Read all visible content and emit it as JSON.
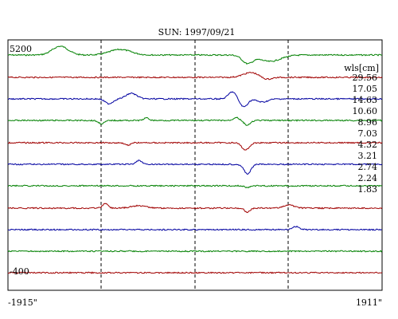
{
  "chart_data": {
    "type": "line",
    "title": "SUN: 1997/09/21",
    "xlabel": "",
    "ylabel": "",
    "x_range": [
      "-1915\"",
      "1911\""
    ],
    "x_tick_labels": [
      "-1915\"",
      "1911\""
    ],
    "y_tick_labels": [
      "5200",
      "-400"
    ],
    "legend_title": "wls[cm]",
    "legend_position": "right",
    "grid": false,
    "dashed_markers": 3,
    "colors": {
      "green": "#008000",
      "red": "#a00000",
      "blue": "#0000a0"
    },
    "series": [
      {
        "name": "29.56",
        "color": "green",
        "features": [
          {
            "at": 0.14,
            "amp": 11,
            "w": 0.03
          },
          {
            "at": 0.3,
            "amp": 7,
            "w": 0.04
          },
          {
            "at": 0.64,
            "amp": -10,
            "w": 0.02
          },
          {
            "at": 0.7,
            "amp": -8,
            "w": 0.04
          }
        ]
      },
      {
        "name": "17.05",
        "color": "red",
        "features": [
          {
            "at": 0.65,
            "amp": 6,
            "w": 0.03
          },
          {
            "at": 0.69,
            "amp": -3,
            "w": 0.02
          }
        ]
      },
      {
        "name": "14.63",
        "color": "blue",
        "features": [
          {
            "at": 0.27,
            "amp": -6,
            "w": 0.015
          },
          {
            "at": 0.33,
            "amp": 7,
            "w": 0.02
          },
          {
            "at": 0.6,
            "amp": 9,
            "w": 0.015
          },
          {
            "at": 0.63,
            "amp": -10,
            "w": 0.015
          },
          {
            "at": 0.68,
            "amp": -4,
            "w": 0.02
          }
        ]
      },
      {
        "name": "10.60",
        "color": "green",
        "features": [
          {
            "at": 0.25,
            "amp": -4,
            "w": 0.012
          },
          {
            "at": 0.37,
            "amp": 3,
            "w": 0.01
          },
          {
            "at": 0.61,
            "amp": 4,
            "w": 0.01
          },
          {
            "at": 0.64,
            "amp": -6,
            "w": 0.012
          }
        ]
      },
      {
        "name": "8.96",
        "color": "red",
        "features": [
          {
            "at": 0.32,
            "amp": -3,
            "w": 0.01
          },
          {
            "at": 0.635,
            "amp": -9,
            "w": 0.014
          }
        ]
      },
      {
        "name": "7.03",
        "color": "blue",
        "features": [
          {
            "at": 0.35,
            "amp": 5,
            "w": 0.01
          },
          {
            "at": 0.64,
            "amp": -12,
            "w": 0.013
          }
        ]
      },
      {
        "name": "4.32",
        "color": "green",
        "features": [
          {
            "at": 0.64,
            "amp": -2,
            "w": 0.01
          }
        ]
      },
      {
        "name": "3.21",
        "color": "red",
        "features": [
          {
            "at": 0.26,
            "amp": 6,
            "w": 0.01
          },
          {
            "at": 0.35,
            "amp": 3,
            "w": 0.03
          },
          {
            "at": 0.64,
            "amp": -5,
            "w": 0.01
          },
          {
            "at": 0.75,
            "amp": 4,
            "w": 0.02
          }
        ]
      },
      {
        "name": "2.74",
        "color": "blue",
        "features": [
          {
            "at": 0.77,
            "amp": 4,
            "w": 0.012
          }
        ]
      },
      {
        "name": "2.24",
        "color": "green",
        "features": []
      },
      {
        "name": "1.83",
        "color": "red",
        "features": []
      }
    ]
  }
}
